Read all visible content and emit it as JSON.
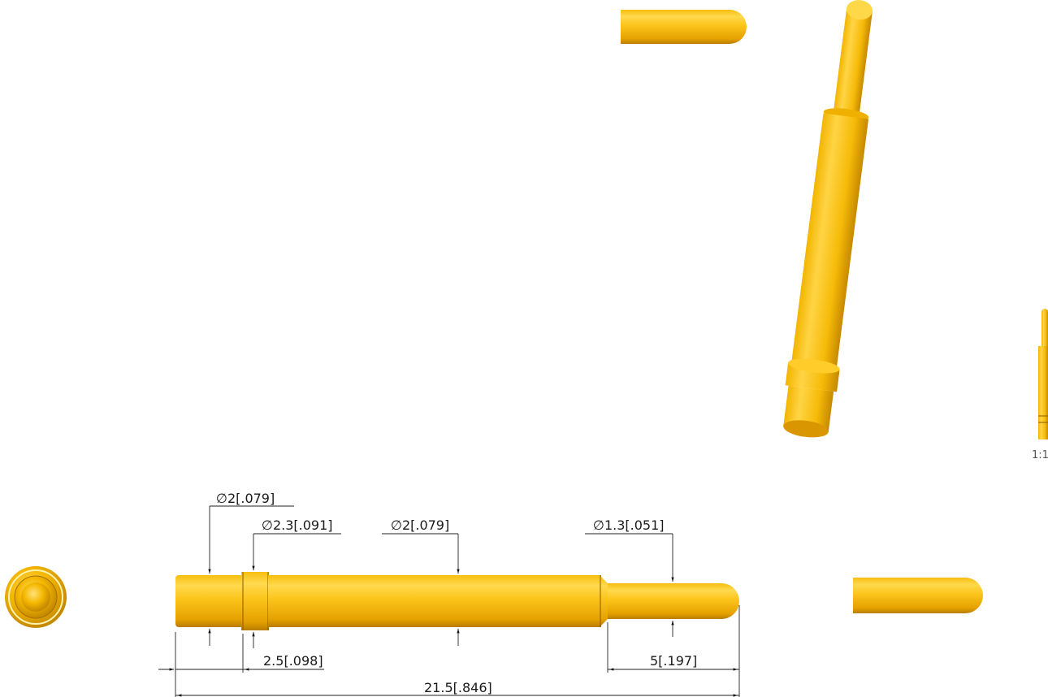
{
  "drawing": {
    "dimensions": {
      "dia_left": "∅2[.079]",
      "dia_collar": "∅2.3[.091]",
      "dia_mid": "∅2[.079]",
      "dia_tip": "∅1.3[.051]",
      "len_collar": "2.5[.098]",
      "len_tip": "5[.197]",
      "len_total": "21.5[.846]"
    },
    "scale_label": "1:1"
  },
  "colors": {
    "gold_light": "#ffd84a",
    "gold_mid": "#f5b800",
    "gold_dark": "#c98a00",
    "line": "#222222"
  }
}
